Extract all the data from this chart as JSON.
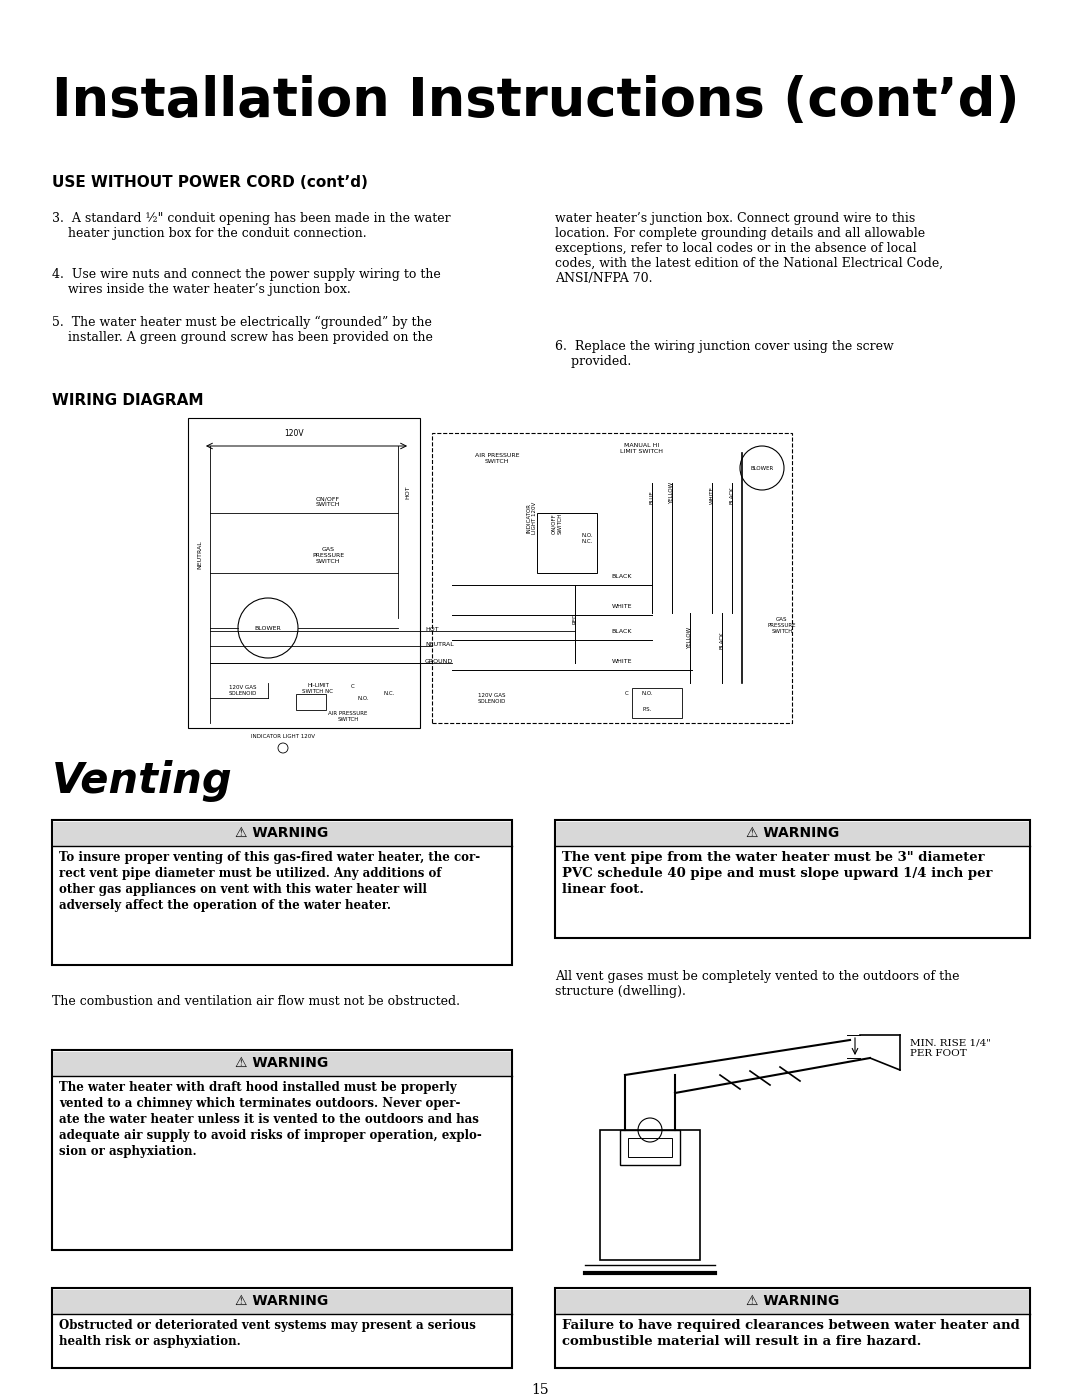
{
  "title": "Installation Instructions (cont’d)",
  "section1_title": "USE WITHOUT POWER CORD (cont’d)",
  "body_text_left": [
    "3.  A standard ½\" conduit opening has been made in the water\n    heater junction box for the conduit connection.",
    "4.  Use wire nuts and connect the power supply wiring to the\n    wires inside the water heater’s junction box.",
    "5.  The water heater must be electrically “grounded” by the\n    installer. A green ground screw has been provided on the"
  ],
  "body_text_right_1": "water heater’s junction box. Connect ground wire to this\nlocation. For complete grounding details and all allowable\nexceptions, refer to local codes or in the absence of local\ncodes, with the latest edition of the National Electrical Code,\nANSI/NFPA 70.",
  "body_text_right_2": "6.  Replace the wiring junction cover using the screw\n    provided.",
  "section2_title": "WIRING DIAGRAM",
  "venting_title": "Venting",
  "warning1_title": "⚠ WARNING",
  "warning1_body": "To insure proper venting of this gas-fired water heater, the cor-\nrect vent pipe diameter must be utilized. Any additions of\nother gas appliances on vent with this water heater will\nadversely affect the operation of the water heater.",
  "warning2_title": "⚠ WARNING",
  "warning2_body": "The vent pipe from the water heater must be 3\" diameter\nPVC schedule 40 pipe and must slope upward 1/4 inch per\nlinear foot.",
  "combustion_text": "The combustion and ventilation air flow must not be obstructed.",
  "vent_gases_text": "All vent gases must be completely vented to the outdoors of the\nstructure (dwelling).",
  "warning3_title": "⚠ WARNING",
  "warning3_body": "The water heater with draft hood installed must be properly\nvented to a chimney which terminates outdoors. Never oper-\nate the water heater unless it is vented to the outdoors and has\nadequate air supply to avoid risks of improper operation, explo-\nsion or asphyxiation.",
  "warning4_title": "⚠ WARNING",
  "warning4_body": "Obstructed or deteriorated vent systems may present a serious\nhealth risk or asphyxiation.",
  "warning5_title": "⚠ WARNING",
  "warning5_body": "Failure to have required clearances between water heater and\ncombustible material will result in a fire hazard.",
  "page_number": "15",
  "bg_color": "#ffffff",
  "text_color": "#000000",
  "min_rise_label": "MIN. RISE 1/4\"\nPER FOOT"
}
